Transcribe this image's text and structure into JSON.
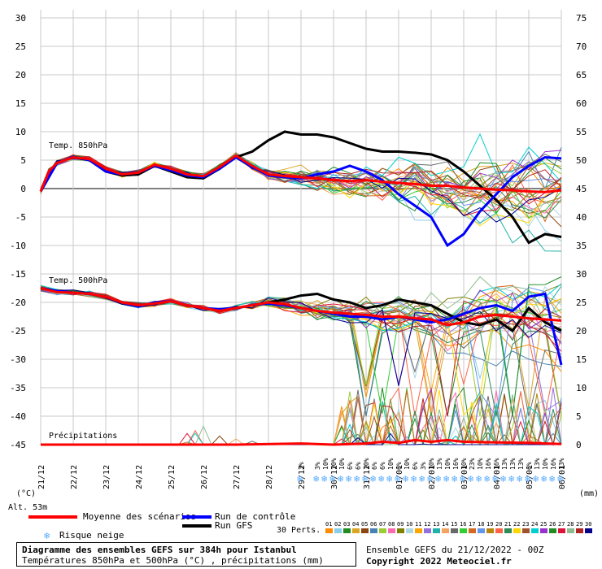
{
  "chart_data": {
    "type": "line",
    "title": "Diagramme des ensembles GEFS sur 384h pour Istanbul",
    "subtitle": "Températures 850hPa et 500hPa (°C) , précipitations (mm)",
    "left_axis": {
      "label": "(°C)",
      "ticks": [
        30,
        25,
        20,
        15,
        10,
        5,
        0,
        -5,
        -10,
        -15,
        -20,
        -25,
        -30,
        -35,
        -40,
        -45
      ],
      "range": [
        -45,
        30
      ]
    },
    "right_axis": {
      "label": "(mm)",
      "ticks": [
        75,
        70,
        65,
        60,
        55,
        50,
        45,
        40,
        35,
        30,
        25,
        20,
        15,
        10,
        5,
        0
      ],
      "range": [
        0,
        75
      ]
    },
    "x_ticks": [
      "21/12",
      "22/12",
      "23/12",
      "24/12",
      "25/12",
      "26/12",
      "27/12",
      "28/12",
      "29/12",
      "30/12",
      "31/12",
      "01/01",
      "02/01",
      "03/01",
      "04/01",
      "05/01",
      "06/01"
    ],
    "x_range_days": [
      0,
      16
    ],
    "panel_labels": {
      "t850": "Temp. 850hPa",
      "t500": "Temp. 500hPa",
      "precip": "Précipitations"
    },
    "series": [
      {
        "name": "Moyenne des scénarios",
        "color": "#ff0000",
        "panel": "t850",
        "x": [
          0,
          0.25,
          0.5,
          1,
          1.5,
          2,
          2.5,
          3,
          3.5,
          4,
          4.5,
          5,
          5.5,
          6,
          6.5,
          7,
          7.5,
          8,
          8.5,
          9,
          9.5,
          10,
          10.5,
          11,
          11.5,
          12,
          12.5,
          13,
          13.5,
          14,
          14.5,
          15,
          15.5,
          16
        ],
        "values": [
          -0.5,
          3,
          4.5,
          5.5,
          5.2,
          3.5,
          2.5,
          2.8,
          4.2,
          3.5,
          2.5,
          2.2,
          3.8,
          5.8,
          4,
          2.5,
          2.2,
          2,
          1.8,
          1.5,
          1.3,
          1.5,
          1.2,
          1,
          0.8,
          0.5,
          0.5,
          0.2,
          0,
          -0.2,
          -0.3,
          -0.5,
          -0.6,
          -0.3
        ]
      },
      {
        "name": "Run de contrôle",
        "color": "#0000ff",
        "panel": "t850",
        "x": [
          0,
          0.5,
          1,
          1.5,
          2,
          2.5,
          3,
          3.5,
          4,
          4.5,
          5,
          5.5,
          6,
          6.5,
          7,
          7.5,
          8,
          8.5,
          9,
          9.5,
          10,
          10.5,
          11,
          11.5,
          12,
          12.5,
          13,
          13.5,
          14,
          14.5,
          15,
          15.5,
          16
        ],
        "values": [
          -0.5,
          4.5,
          5.6,
          5,
          3,
          2.5,
          2.8,
          4,
          3.2,
          2.3,
          2,
          3.5,
          5.5,
          3.8,
          2.3,
          2,
          1.8,
          2.5,
          3,
          4,
          3,
          1.5,
          -1,
          -3,
          -5,
          -10,
          -8,
          -4,
          -1,
          2,
          4,
          5.5,
          5.3
        ]
      },
      {
        "name": "Run GFS",
        "color": "#000000",
        "panel": "t850",
        "x": [
          0,
          0.5,
          1,
          1.5,
          2,
          2.5,
          3,
          3.5,
          4,
          4.5,
          5,
          5.5,
          6,
          6.5,
          7,
          7.5,
          8,
          8.5,
          9,
          9.5,
          10,
          10.5,
          11,
          11.5,
          12,
          12.5,
          13,
          13.5,
          14,
          14.5,
          15,
          15.5,
          16
        ],
        "values": [
          -0.5,
          4.5,
          5.5,
          5,
          3,
          2.3,
          2.5,
          4,
          3,
          2,
          1.8,
          3.5,
          5.5,
          6.5,
          8.5,
          10,
          9.5,
          9.5,
          9,
          8,
          7,
          6.5,
          6.5,
          6.3,
          6,
          5,
          3,
          0.5,
          -2,
          -5,
          -9.5,
          -8,
          -8.5
        ]
      },
      {
        "name": "Moyenne des scénarios",
        "color": "#ff0000",
        "panel": "t500",
        "x": [
          0,
          0.5,
          1,
          1.5,
          2,
          2.5,
          3,
          3.5,
          4,
          4.5,
          5,
          5.5,
          6,
          6.5,
          7,
          7.5,
          8,
          8.5,
          9,
          9.5,
          10,
          10.5,
          11,
          11.5,
          12,
          12.5,
          13,
          13.5,
          14,
          14.5,
          15,
          15.5,
          16
        ],
        "values": [
          -17.5,
          -18.2,
          -18.3,
          -18.5,
          -19,
          -20,
          -20.5,
          -20.2,
          -19.8,
          -20.5,
          -21,
          -21.5,
          -21,
          -20.5,
          -20,
          -20.3,
          -21,
          -21.5,
          -21.8,
          -22,
          -22.2,
          -22.5,
          -22.5,
          -22.8,
          -23,
          -24,
          -23.5,
          -22.5,
          -22.2,
          -22.5,
          -22.8,
          -23,
          -23.2
        ]
      },
      {
        "name": "Run de contrôle",
        "color": "#0000ff",
        "panel": "t500",
        "x": [
          0,
          0.5,
          1,
          1.5,
          2,
          2.5,
          3,
          3.5,
          4,
          4.5,
          5,
          5.5,
          6,
          6.5,
          7,
          7.5,
          8,
          8.5,
          9,
          9.5,
          10,
          10.5,
          11,
          11.5,
          12,
          12.5,
          13,
          13.5,
          14,
          14.5,
          15,
          15.5,
          16
        ],
        "values": [
          -17.5,
          -18,
          -18.3,
          -18.5,
          -19,
          -20,
          -20.7,
          -20,
          -19.8,
          -20.5,
          -21,
          -21.2,
          -21,
          -20.5,
          -20.2,
          -20.5,
          -21,
          -21.5,
          -22,
          -22.5,
          -22.5,
          -23,
          -22.5,
          -23,
          -23.5,
          -23,
          -22,
          -21,
          -20.5,
          -21.5,
          -19,
          -18.5,
          -31
        ]
      },
      {
        "name": "Run GFS",
        "color": "#000000",
        "panel": "t500",
        "x": [
          0,
          0.5,
          1,
          1.5,
          2,
          2.5,
          3,
          3.5,
          4,
          4.5,
          5,
          5.5,
          6,
          6.5,
          7,
          7.5,
          8,
          8.5,
          9,
          9.5,
          10,
          10.5,
          11,
          11.5,
          12,
          12.5,
          13,
          13.5,
          14,
          14.5,
          15,
          15.5,
          16
        ],
        "values": [
          -17.5,
          -18,
          -18.3,
          -18.5,
          -19,
          -20,
          -20.5,
          -20.2,
          -19.8,
          -20.5,
          -21,
          -21.5,
          -21,
          -20.5,
          -20,
          -19.5,
          -18.8,
          -18.5,
          -19.5,
          -20,
          -21,
          -20.5,
          -19.5,
          -20,
          -20.5,
          -22,
          -23.5,
          -24,
          -23,
          -25,
          -21,
          -23.5,
          -25
        ]
      },
      {
        "name": "Moyenne des scénarios",
        "color": "#ff0000",
        "panel": "precip",
        "x": [
          0,
          2,
          4,
          6,
          8,
          9,
          10,
          10.5,
          11,
          11.5,
          12,
          12.5,
          13,
          14,
          15,
          16
        ],
        "values": [
          0,
          0,
          0,
          0,
          0.2,
          0,
          0.2,
          0.5,
          0.3,
          0.8,
          0.5,
          0.8,
          0.5,
          0.4,
          0.3,
          0.1
        ]
      }
    ],
    "perturbation_count": 30,
    "perturbation_colors": [
      "#ff8c00",
      "#87ceeb",
      "#228b22",
      "#daa520",
      "#8b4513",
      "#4682b4",
      "#9acd32",
      "#ff69b4",
      "#808000",
      "#add8e6",
      "#ffa500",
      "#9370db",
      "#20b2aa",
      "#f4a460",
      "#696969",
      "#32cd32",
      "#d2691e",
      "#6495ed",
      "#b8860b",
      "#ff6347",
      "#2e8b57",
      "#ffd700",
      "#a0522d",
      "#00ced1",
      "#9932cc",
      "#228b22",
      "#dc143c",
      "#8fbc8f",
      "#b22222",
      "#00008b"
    ],
    "perturbation_labels": [
      "01",
      "02",
      "03",
      "04",
      "05",
      "06",
      "07",
      "08",
      "09",
      "10",
      "11",
      "12",
      "13",
      "14",
      "15",
      "16",
      "17",
      "18",
      "19",
      "20",
      "21",
      "22",
      "23",
      "24",
      "25",
      "26",
      "27",
      "28",
      "29",
      "30"
    ],
    "snow_risk": [
      {
        "day": 8,
        "pct": "3%"
      },
      {
        "day": 8.5,
        "pct": "3%"
      },
      {
        "day": 8.75,
        "pct": "10%"
      },
      {
        "day": 9,
        "pct": "10%"
      },
      {
        "day": 9.25,
        "pct": "10%"
      },
      {
        "day": 9.5,
        "pct": "6%"
      },
      {
        "day": 9.75,
        "pct": "6%"
      },
      {
        "day": 10,
        "pct": "10%"
      },
      {
        "day": 10.25,
        "pct": "6%"
      },
      {
        "day": 10.5,
        "pct": "6%"
      },
      {
        "day": 10.75,
        "pct": "10%"
      },
      {
        "day": 11,
        "pct": "6%"
      },
      {
        "day": 11.25,
        "pct": "10%"
      },
      {
        "day": 11.5,
        "pct": "6%"
      },
      {
        "day": 11.75,
        "pct": "3%"
      },
      {
        "day": 12,
        "pct": "10%"
      },
      {
        "day": 12.25,
        "pct": "13%"
      },
      {
        "day": 12.5,
        "pct": "10%"
      },
      {
        "day": 12.75,
        "pct": "16%"
      },
      {
        "day": 13,
        "pct": "10%"
      },
      {
        "day": 13.25,
        "pct": "23%"
      },
      {
        "day": 13.5,
        "pct": "10%"
      },
      {
        "day": 13.75,
        "pct": "16%"
      },
      {
        "day": 14,
        "pct": "16%"
      },
      {
        "day": 14.25,
        "pct": "13%"
      },
      {
        "day": 14.5,
        "pct": "13%"
      },
      {
        "day": 14.75,
        "pct": "13%"
      },
      {
        "day": 15,
        "pct": "6%"
      },
      {
        "day": 15.25,
        "pct": "13%"
      },
      {
        "day": 15.5,
        "pct": "10%"
      },
      {
        "day": 15.75,
        "pct": "16%"
      },
      {
        "day": 16,
        "pct": "13%"
      }
    ]
  },
  "labels": {
    "altitude": "Alt. 53m",
    "legend_mean": "Moyenne des scénarios",
    "legend_control": "Run de contrôle",
    "legend_gfs": "Run GFS",
    "legend_snow": "Risque neige",
    "perts": "30 Perts.",
    "ensemble_info": "Ensemble GEFS du 21/12/2022 - 00Z",
    "copyright": "Copyright 2022 Meteociel.fr"
  },
  "colors": {
    "mean": "#ff0000",
    "control": "#0000ff",
    "gfs": "#000000",
    "grid": "#bfbfbf",
    "snow": "#55aaff"
  }
}
